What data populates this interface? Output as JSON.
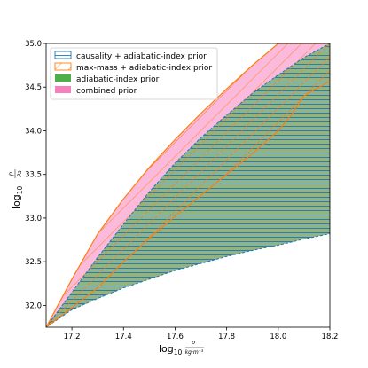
{
  "chart_data": {
    "type": "area",
    "xlim": [
      17.1,
      18.2
    ],
    "ylim": [
      31.75,
      35.0
    ],
    "xticks": [
      "17.2",
      "17.4",
      "17.6",
      "17.8",
      "18.0",
      "18.2"
    ],
    "xtick_values": [
      17.2,
      17.4,
      17.6,
      17.8,
      18.0,
      18.2
    ],
    "yticks": [
      "32.0",
      "32.5",
      "33.0",
      "33.5",
      "34.0",
      "34.5",
      "35.0"
    ],
    "ytick_values": [
      32.0,
      32.5,
      33.0,
      33.5,
      34.0,
      34.5,
      35.0
    ],
    "xlabel": {
      "main": "log",
      "sub": "10",
      "sub_frac_num": "ρ",
      "sub_frac_den": "kg·m⁻³"
    },
    "ylabel": {
      "main": "log",
      "sub": "10",
      "sub_frac_num": "p",
      "sub_frac_den": "Pa"
    },
    "legend_position": "upper-left",
    "series": [
      {
        "name": "causality + adiabatic-index prior",
        "key": "causality",
        "color": "#1f77b4",
        "style": "horizontal-hatch",
        "upper": [
          [
            17.1,
            31.75
          ],
          [
            17.2,
            32.15
          ],
          [
            17.3,
            32.55
          ],
          [
            17.4,
            32.93
          ],
          [
            17.5,
            33.3
          ],
          [
            17.6,
            33.63
          ],
          [
            17.7,
            33.92
          ],
          [
            17.8,
            34.18
          ],
          [
            17.9,
            34.43
          ],
          [
            18.0,
            34.64
          ],
          [
            18.1,
            34.84
          ],
          [
            18.2,
            35.0
          ]
        ],
        "lower": [
          [
            17.1,
            31.75
          ],
          [
            17.2,
            31.95
          ],
          [
            17.3,
            32.08
          ],
          [
            17.4,
            32.2
          ],
          [
            17.5,
            32.3
          ],
          [
            17.6,
            32.4
          ],
          [
            17.7,
            32.48
          ],
          [
            17.8,
            32.56
          ],
          [
            17.9,
            32.63
          ],
          [
            18.0,
            32.69
          ],
          [
            18.1,
            32.76
          ],
          [
            18.2,
            32.82
          ]
        ]
      },
      {
        "name": "max-mass + adiabatic-index prior",
        "key": "maxmass",
        "color": "#ff7f0e",
        "style": "diagonal-hatch",
        "upper": [
          [
            17.1,
            31.75
          ],
          [
            17.2,
            32.3
          ],
          [
            17.3,
            32.82
          ],
          [
            17.4,
            33.22
          ],
          [
            17.5,
            33.58
          ],
          [
            17.6,
            33.9
          ],
          [
            17.7,
            34.2
          ],
          [
            17.8,
            34.48
          ],
          [
            17.9,
            34.75
          ],
          [
            18.0,
            35.0
          ],
          [
            18.2,
            35.0
          ]
        ],
        "lower": [
          [
            17.1,
            31.75
          ],
          [
            17.3,
            32.2
          ],
          [
            17.4,
            32.5
          ],
          [
            17.5,
            32.77
          ],
          [
            17.6,
            33.02
          ],
          [
            17.7,
            33.26
          ],
          [
            17.8,
            33.5
          ],
          [
            17.9,
            33.74
          ],
          [
            18.0,
            34.0
          ],
          [
            18.05,
            34.18
          ],
          [
            18.1,
            34.4
          ],
          [
            18.2,
            34.57
          ]
        ]
      },
      {
        "name": "adiabatic-index prior",
        "key": "adiabatic",
        "color": "#2ca02c",
        "style": "fill",
        "upper": [
          [
            17.1,
            31.75
          ],
          [
            17.2,
            32.3
          ],
          [
            17.3,
            32.82
          ],
          [
            17.4,
            33.22
          ],
          [
            17.5,
            33.58
          ],
          [
            17.6,
            33.9
          ],
          [
            17.7,
            34.2
          ],
          [
            17.8,
            34.48
          ],
          [
            17.9,
            34.75
          ],
          [
            18.0,
            35.0
          ],
          [
            18.2,
            35.0
          ]
        ],
        "lower": [
          [
            17.1,
            31.75
          ],
          [
            17.2,
            31.95
          ],
          [
            17.3,
            32.08
          ],
          [
            17.4,
            32.2
          ],
          [
            17.5,
            32.3
          ],
          [
            17.6,
            32.4
          ],
          [
            17.7,
            32.48
          ],
          [
            17.8,
            32.56
          ],
          [
            17.9,
            32.63
          ],
          [
            18.0,
            32.69
          ],
          [
            18.1,
            32.76
          ],
          [
            18.2,
            32.82
          ]
        ]
      },
      {
        "name": "combined prior",
        "key": "combined",
        "color": "#f781bf",
        "style": "fill"
      }
    ]
  }
}
